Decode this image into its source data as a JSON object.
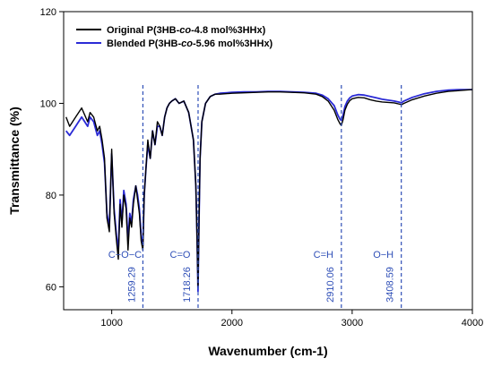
{
  "chart_data": {
    "type": "line",
    "xlabel": "Wavenumber (cm-1)",
    "ylabel": "Transmittance (%)",
    "xlim": [
      600,
      4000
    ],
    "ylim": [
      55,
      120
    ],
    "x_ticks": [
      1000,
      2000,
      3000,
      4000
    ],
    "y_ticks": [
      60,
      80,
      100,
      120
    ],
    "grid": false,
    "legend_position": "top-left",
    "series": [
      {
        "name": "Original P(3HB-co-4.8 mol%3HHx)",
        "legend_parts": [
          "Original P(3HB-",
          "co",
          "-4.8 mol%3HHx)"
        ],
        "color": "#000000",
        "x": [
          620,
          650,
          700,
          750,
          800,
          820,
          850,
          880,
          900,
          920,
          940,
          960,
          980,
          1000,
          1020,
          1040,
          1055,
          1070,
          1085,
          1100,
          1120,
          1135,
          1150,
          1165,
          1180,
          1200,
          1215,
          1230,
          1245,
          1259,
          1270,
          1285,
          1300,
          1320,
          1340,
          1360,
          1380,
          1400,
          1420,
          1440,
          1460,
          1480,
          1500,
          1530,
          1560,
          1600,
          1640,
          1680,
          1700,
          1710,
          1718,
          1726,
          1735,
          1750,
          1780,
          1820,
          1860,
          1900,
          2000,
          2100,
          2200,
          2300,
          2400,
          2500,
          2600,
          2700,
          2750,
          2800,
          2850,
          2880,
          2900,
          2910,
          2925,
          2940,
          2960,
          2980,
          3000,
          3050,
          3100,
          3150,
          3200,
          3250,
          3300,
          3350,
          3400,
          3409,
          3430,
          3500,
          3600,
          3700,
          3800,
          3900,
          4000
        ],
        "values": [
          97,
          95,
          97,
          99,
          96,
          98,
          97,
          94,
          95,
          92,
          88,
          75,
          72,
          90,
          76,
          70,
          66,
          78,
          73,
          80,
          77,
          68,
          75,
          73,
          78,
          82,
          79,
          76,
          70,
          68,
          80,
          86,
          92,
          88,
          94,
          91,
          96,
          95,
          93,
          97,
          99,
          100,
          100.5,
          101,
          100,
          100.5,
          98,
          92,
          82,
          70,
          60,
          74,
          88,
          96,
          100,
          101.5,
          102,
          102,
          102.2,
          102.3,
          102.4,
          102.5,
          102.5,
          102.4,
          102.3,
          102,
          101.5,
          100.5,
          98.5,
          96.5,
          95.5,
          95.2,
          96.5,
          98.5,
          99.8,
          100.6,
          101,
          101.3,
          101.2,
          100.8,
          100.5,
          100.3,
          100.2,
          100.1,
          99.8,
          99.7,
          100,
          100.8,
          101.6,
          102.2,
          102.6,
          102.8,
          103
        ]
      },
      {
        "name": "Blended P(3HB-co-5.96 mol%3HHx)",
        "legend_parts": [
          "Blended P(3HB-",
          "co",
          "-5.96 mol%3HHx)"
        ],
        "color": "#2b2bd6",
        "x": [
          620,
          650,
          700,
          750,
          800,
          820,
          850,
          880,
          900,
          920,
          940,
          960,
          980,
          1000,
          1020,
          1040,
          1055,
          1070,
          1085,
          1100,
          1120,
          1135,
          1150,
          1165,
          1180,
          1200,
          1215,
          1230,
          1245,
          1259,
          1270,
          1285,
          1300,
          1320,
          1340,
          1360,
          1380,
          1400,
          1420,
          1440,
          1460,
          1480,
          1500,
          1530,
          1560,
          1600,
          1640,
          1680,
          1700,
          1710,
          1718,
          1726,
          1735,
          1750,
          1780,
          1820,
          1860,
          1900,
          2000,
          2100,
          2200,
          2300,
          2400,
          2500,
          2600,
          2700,
          2750,
          2800,
          2850,
          2880,
          2900,
          2910,
          2925,
          2940,
          2960,
          2980,
          3000,
          3050,
          3100,
          3150,
          3200,
          3250,
          3300,
          3350,
          3400,
          3409,
          3430,
          3500,
          3600,
          3700,
          3800,
          3900,
          4000
        ],
        "values": [
          94,
          93,
          95,
          97,
          95,
          97,
          96,
          93,
          94,
          91,
          87,
          76,
          73,
          89,
          77,
          71,
          68,
          79,
          74,
          81,
          78,
          70,
          76,
          74,
          79,
          82,
          80,
          77,
          71,
          69,
          80,
          86,
          91,
          88,
          94,
          91,
          95,
          95,
          93,
          97,
          99,
          100,
          100.5,
          101,
          100,
          100.5,
          98,
          92,
          82,
          70,
          59,
          74,
          88,
          96,
          100,
          101.5,
          102,
          102.2,
          102.4,
          102.5,
          102.5,
          102.6,
          102.6,
          102.5,
          102.4,
          102.2,
          101.8,
          101,
          99.5,
          97.5,
          96.5,
          96.3,
          97.5,
          99.3,
          100.5,
          101.2,
          101.6,
          101.9,
          101.8,
          101.5,
          101.2,
          100.9,
          100.7,
          100.5,
          100.2,
          100.1,
          100.5,
          101.3,
          102.1,
          102.6,
          102.9,
          103,
          103
        ]
      }
    ],
    "annotations": [
      {
        "group": "C−O−C",
        "value": "1259.29",
        "x": 1259.29
      },
      {
        "group": "C=O",
        "value": "1718.26",
        "x": 1718.26
      },
      {
        "group": "C=H",
        "value": "2910.06",
        "x": 2910.06
      },
      {
        "group": "O−H",
        "value": "3408.59",
        "x": 3408.59
      }
    ],
    "annotation_color": "#2f4fb7"
  }
}
